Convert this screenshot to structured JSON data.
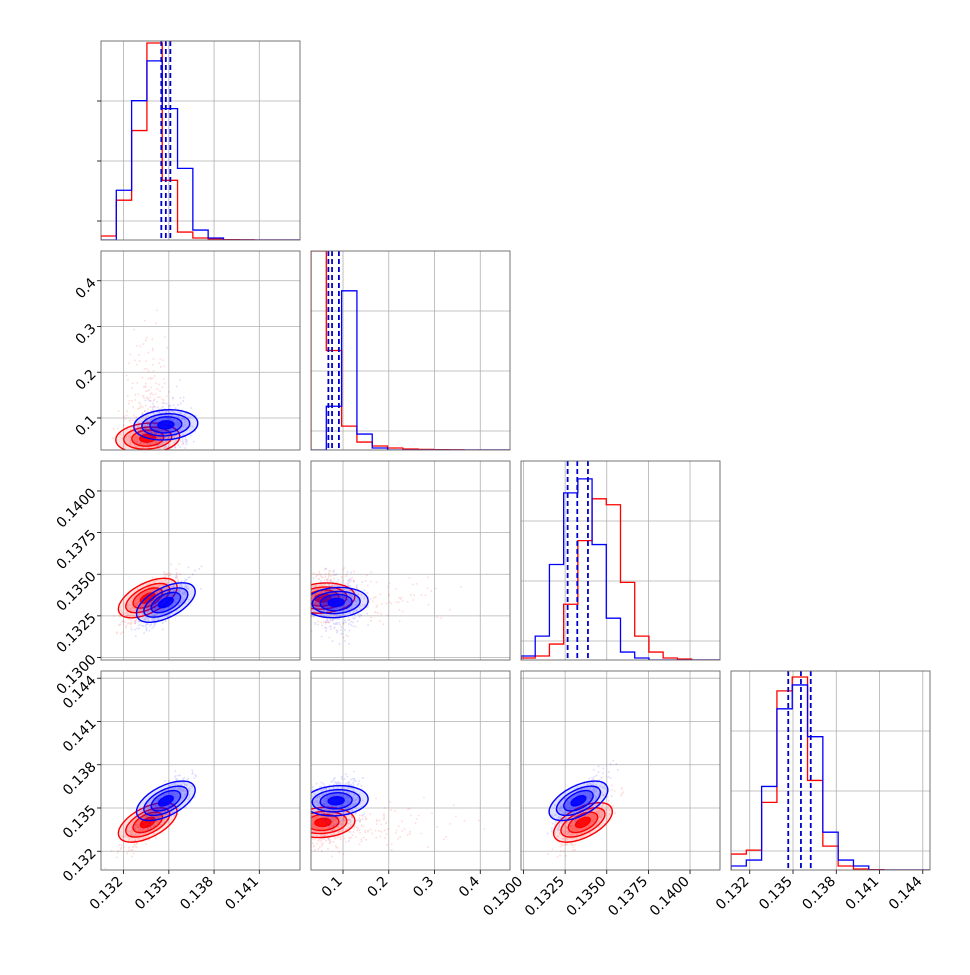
{
  "chart_data": {
    "type": "corner",
    "parameters": [
      {
        "ticks": [
          0.132,
          0.135,
          0.138,
          0.141
        ],
        "tick_labels": [
          "0.132",
          "0.135",
          "0.138",
          "0.141"
        ],
        "range": [
          0.1305,
          0.1437
        ]
      },
      {
        "ticks": [
          0.1,
          0.2,
          0.3,
          0.4
        ],
        "tick_labels": [
          "0.1",
          "0.2",
          "0.3",
          "0.4"
        ],
        "range": [
          0.03,
          0.465
        ]
      },
      {
        "ticks": [
          0.13,
          0.1325,
          0.135,
          0.1375,
          0.14
        ],
        "tick_labels": [
          "0.1300",
          "0.1325",
          "0.1350",
          "0.1375",
          "0.1400"
        ],
        "range": [
          0.12985,
          0.1418
        ]
      },
      {
        "ticks": [
          0.132,
          0.135,
          0.138,
          0.141,
          0.144
        ],
        "tick_labels": [
          "0.132",
          "0.135",
          "0.138",
          "0.141",
          "0.144"
        ],
        "range": [
          0.1307,
          0.1445
        ]
      }
    ],
    "series": [
      {
        "color": "#ff0000",
        "histograms": [
          [
            0.02,
            0.2,
            0.55,
            0.99,
            0.3,
            0.04,
            0.01,
            0.005,
            0.002,
            0.001,
            0.0,
            0.0,
            0.0
          ],
          [
            1.0,
            0.5,
            0.12,
            0.04,
            0.02,
            0.01,
            0.005,
            0.003,
            0.002,
            0.001,
            0.0,
            0.0,
            0.0
          ],
          [
            0.01,
            0.02,
            0.08,
            0.28,
            0.6,
            0.81,
            0.78,
            0.39,
            0.12,
            0.04,
            0.01,
            0.005,
            0.0,
            0.0
          ],
          [
            0.08,
            0.1,
            0.34,
            0.9,
            0.97,
            0.45,
            0.12,
            0.02,
            0.005,
            0.002,
            0.0,
            0.0,
            0.0
          ]
        ],
        "centers": [
          [
            0.1336,
            0.056,
            0.13357,
            0.134
          ],
          [
            0.1336,
            0.056,
            0.13357,
            0.134
          ],
          [
            0.1336,
            0.056,
            0.13357,
            0.134
          ],
          [
            0.1336,
            0.056,
            0.13357,
            0.134
          ]
        ]
      },
      {
        "color": "#0000ff",
        "histograms": [
          [
            0.0,
            0.25,
            0.7,
            0.9,
            0.66,
            0.36,
            0.05,
            0.01,
            0.0,
            0.0,
            0.0,
            0.0,
            0.0
          ],
          [
            0.0,
            0.22,
            0.8,
            0.08,
            0.01,
            0.0,
            0.0,
            0.0,
            0.0,
            0.0,
            0.0,
            0.0,
            0.0
          ],
          [
            0.02,
            0.12,
            0.48,
            0.84,
            0.91,
            0.58,
            0.21,
            0.04,
            0.01,
            0.0,
            0.0,
            0.0,
            0.0,
            0.0
          ],
          [
            0.02,
            0.05,
            0.42,
            0.81,
            0.93,
            0.67,
            0.19,
            0.05,
            0.02,
            0.0,
            0.0,
            0.0,
            0.0
          ]
        ],
        "centers": [
          [
            0.1348,
            0.085,
            0.1333,
            0.1355
          ],
          [
            0.1348,
            0.085,
            0.1333,
            0.1355
          ],
          [
            0.1348,
            0.085,
            0.1333,
            0.1355
          ],
          [
            0.1348,
            0.085,
            0.1333,
            0.1355
          ]
        ]
      }
    ],
    "quantiles_blue": [
      [
        0.1345,
        0.1348,
        0.1351
      ],
      [
        0.068,
        0.076,
        0.091
      ],
      [
        0.13265,
        0.13323,
        0.13387
      ],
      [
        0.13467,
        0.13555,
        0.13623
      ]
    ],
    "grid": true,
    "legend": "none"
  }
}
